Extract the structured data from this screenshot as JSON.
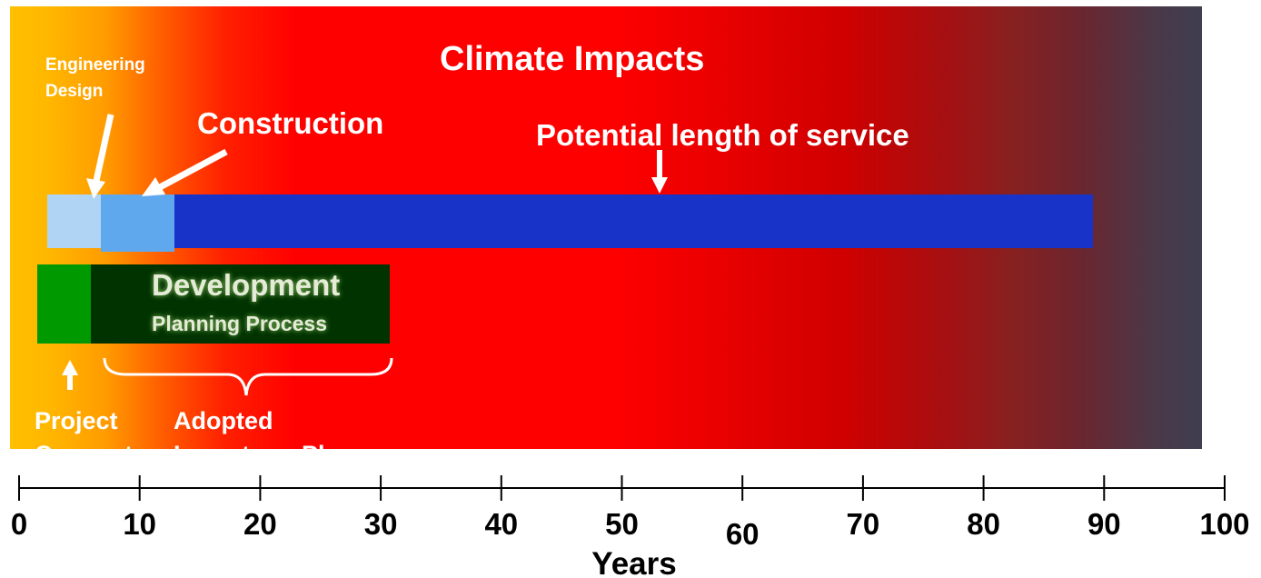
{
  "diagram": {
    "title": "Climate Impacts",
    "labels": {
      "engineering_design": [
        "Engineering",
        "Design"
      ],
      "construction": "Construction",
      "service": "Potential length of service",
      "development": "Development",
      "planning_process": "Planning Process",
      "project_concept": [
        "Project",
        "Concept"
      ],
      "adopted_plan": [
        "Adopted",
        "Long-term Plan"
      ]
    },
    "colors": {
      "engineering_bar": "#b0d4f4",
      "construction_bar": "#60a8ee",
      "service_bar": "#1733c8",
      "concept_bar": "#009900",
      "development_bar": "#003300"
    }
  },
  "axis": {
    "ticks": [
      "0",
      "10",
      "20",
      "30",
      "40",
      "50",
      "60",
      "70",
      "80",
      "90",
      "100"
    ],
    "label": "Years"
  }
}
